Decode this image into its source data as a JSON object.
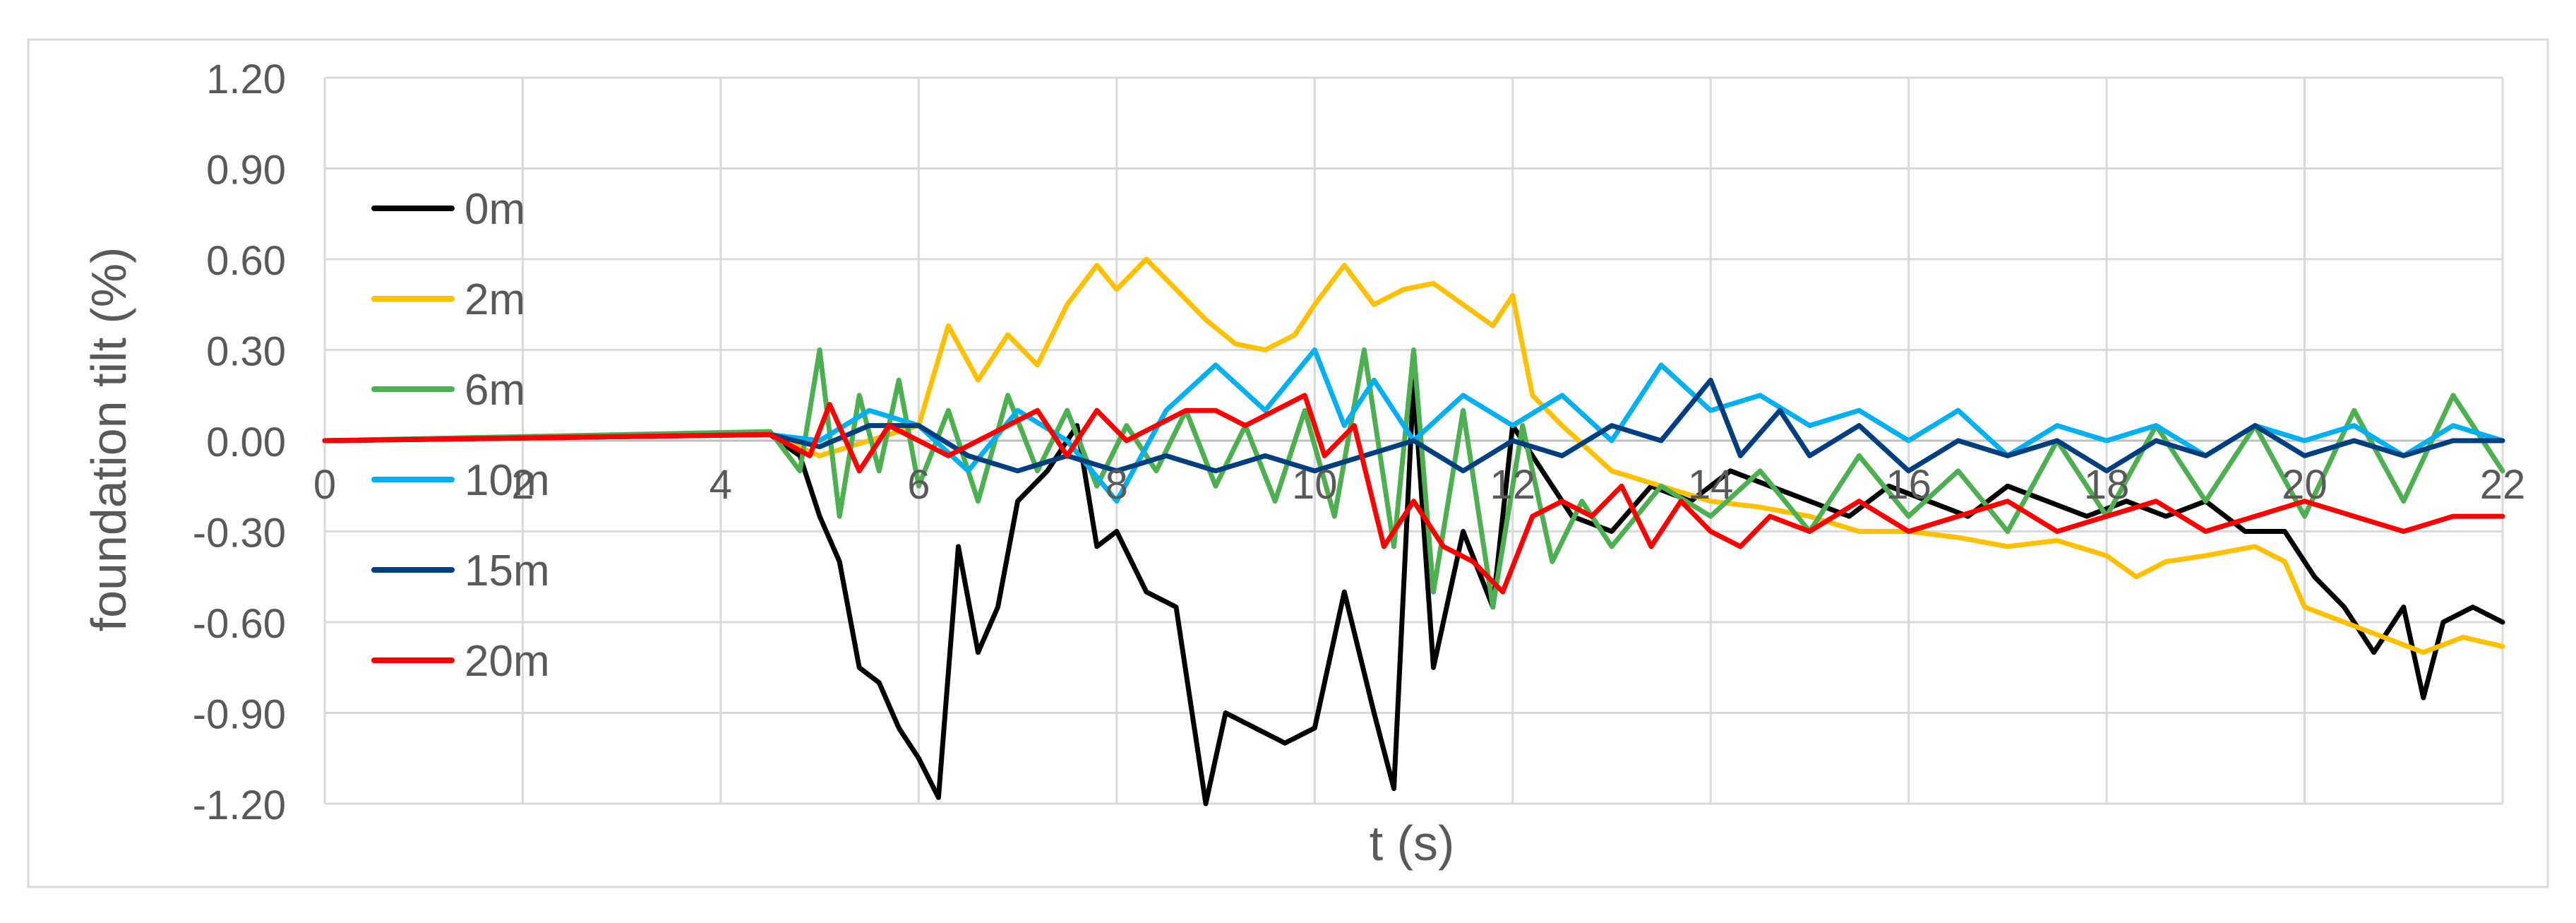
{
  "chart_data": {
    "type": "line",
    "title": "",
    "xlabel": "t (s)",
    "ylabel": "foundation tilt (%)",
    "xlim": [
      0,
      22
    ],
    "ylim": [
      -1.2,
      1.2
    ],
    "x_ticks": [
      0,
      2,
      4,
      6,
      8,
      10,
      12,
      14,
      16,
      18,
      20,
      22
    ],
    "x_tick_labels": [
      "0",
      "2",
      "4",
      "6",
      "8",
      "10",
      "12",
      "14",
      "16",
      "18",
      "20",
      "22"
    ],
    "y_ticks": [
      -1.2,
      -0.9,
      -0.6,
      -0.3,
      0,
      0.3,
      0.6,
      0.9,
      1.2
    ],
    "y_tick_labels": [
      "-1.20",
      "-0.90",
      "-0.60",
      "-0.30",
      "0.00",
      "0.30",
      "0.60",
      "0.90",
      "1.20"
    ],
    "grid": true,
    "legend_position": "left, inside plot",
    "series": [
      {
        "name": "0m",
        "color": "#000000",
        "points": [
          [
            0,
            0
          ],
          [
            4.5,
            0.02
          ],
          [
            4.8,
            -0.05
          ],
          [
            5.0,
            -0.25
          ],
          [
            5.2,
            -0.4
          ],
          [
            5.4,
            -0.75
          ],
          [
            5.6,
            -0.8
          ],
          [
            5.8,
            -0.95
          ],
          [
            6.0,
            -1.05
          ],
          [
            6.2,
            -1.18
          ],
          [
            6.4,
            -0.35
          ],
          [
            6.6,
            -0.7
          ],
          [
            6.8,
            -0.55
          ],
          [
            7.0,
            -0.2
          ],
          [
            7.3,
            -0.1
          ],
          [
            7.6,
            0.05
          ],
          [
            7.8,
            -0.35
          ],
          [
            8.0,
            -0.3
          ],
          [
            8.3,
            -0.5
          ],
          [
            8.6,
            -0.55
          ],
          [
            8.9,
            -1.2
          ],
          [
            9.1,
            -0.9
          ],
          [
            9.4,
            -0.95
          ],
          [
            9.7,
            -1.0
          ],
          [
            10.0,
            -0.95
          ],
          [
            10.3,
            -0.5
          ],
          [
            10.6,
            -0.9
          ],
          [
            10.8,
            -1.15
          ],
          [
            11.0,
            0.2
          ],
          [
            11.2,
            -0.75
          ],
          [
            11.5,
            -0.3
          ],
          [
            11.8,
            -0.55
          ],
          [
            12.0,
            0.05
          ],
          [
            12.3,
            -0.1
          ],
          [
            12.6,
            -0.25
          ],
          [
            13.0,
            -0.3
          ],
          [
            13.4,
            -0.15
          ],
          [
            13.8,
            -0.2
          ],
          [
            14.2,
            -0.1
          ],
          [
            14.6,
            -0.15
          ],
          [
            15.0,
            -0.2
          ],
          [
            15.4,
            -0.25
          ],
          [
            15.8,
            -0.15
          ],
          [
            16.2,
            -0.2
          ],
          [
            16.6,
            -0.25
          ],
          [
            17.0,
            -0.15
          ],
          [
            17.4,
            -0.2
          ],
          [
            17.8,
            -0.25
          ],
          [
            18.2,
            -0.2
          ],
          [
            18.6,
            -0.25
          ],
          [
            19.0,
            -0.2
          ],
          [
            19.4,
            -0.3
          ],
          [
            19.8,
            -0.3
          ],
          [
            20.1,
            -0.45
          ],
          [
            20.4,
            -0.55
          ],
          [
            20.7,
            -0.7
          ],
          [
            21.0,
            -0.55
          ],
          [
            21.2,
            -0.85
          ],
          [
            21.4,
            -0.6
          ],
          [
            21.7,
            -0.55
          ],
          [
            22.0,
            -0.6
          ]
        ]
      },
      {
        "name": "2m",
        "color": "#FFC000",
        "points": [
          [
            0,
            0
          ],
          [
            4.5,
            0.02
          ],
          [
            5.0,
            -0.05
          ],
          [
            5.5,
            0.0
          ],
          [
            6.0,
            0.05
          ],
          [
            6.3,
            0.38
          ],
          [
            6.6,
            0.2
          ],
          [
            6.9,
            0.35
          ],
          [
            7.2,
            0.25
          ],
          [
            7.5,
            0.45
          ],
          [
            7.8,
            0.58
          ],
          [
            8.0,
            0.5
          ],
          [
            8.3,
            0.6
          ],
          [
            8.6,
            0.5
          ],
          [
            8.9,
            0.4
          ],
          [
            9.2,
            0.32
          ],
          [
            9.5,
            0.3
          ],
          [
            9.8,
            0.35
          ],
          [
            10.0,
            0.45
          ],
          [
            10.3,
            0.58
          ],
          [
            10.6,
            0.45
          ],
          [
            10.9,
            0.5
          ],
          [
            11.2,
            0.52
          ],
          [
            11.5,
            0.45
          ],
          [
            11.8,
            0.38
          ],
          [
            12.0,
            0.48
          ],
          [
            12.2,
            0.15
          ],
          [
            12.5,
            0.05
          ],
          [
            13.0,
            -0.1
          ],
          [
            13.5,
            -0.15
          ],
          [
            14.0,
            -0.2
          ],
          [
            14.5,
            -0.22
          ],
          [
            15.0,
            -0.25
          ],
          [
            15.5,
            -0.3
          ],
          [
            16.0,
            -0.3
          ],
          [
            16.5,
            -0.32
          ],
          [
            17.0,
            -0.35
          ],
          [
            17.5,
            -0.33
          ],
          [
            18.0,
            -0.38
          ],
          [
            18.3,
            -0.45
          ],
          [
            18.6,
            -0.4
          ],
          [
            19.0,
            -0.38
          ],
          [
            19.5,
            -0.35
          ],
          [
            19.8,
            -0.4
          ],
          [
            20.0,
            -0.55
          ],
          [
            20.4,
            -0.6
          ],
          [
            20.8,
            -0.65
          ],
          [
            21.2,
            -0.7
          ],
          [
            21.6,
            -0.65
          ],
          [
            22.0,
            -0.68
          ]
        ]
      },
      {
        "name": "6m",
        "color": "#4CAF50",
        "points": [
          [
            0,
            0
          ],
          [
            4.5,
            0.03
          ],
          [
            4.8,
            -0.1
          ],
          [
            5.0,
            0.3
          ],
          [
            5.2,
            -0.25
          ],
          [
            5.4,
            0.15
          ],
          [
            5.6,
            -0.1
          ],
          [
            5.8,
            0.2
          ],
          [
            6.0,
            -0.15
          ],
          [
            6.3,
            0.1
          ],
          [
            6.6,
            -0.2
          ],
          [
            6.9,
            0.15
          ],
          [
            7.2,
            -0.1
          ],
          [
            7.5,
            0.1
          ],
          [
            7.8,
            -0.15
          ],
          [
            8.1,
            0.05
          ],
          [
            8.4,
            -0.1
          ],
          [
            8.7,
            0.1
          ],
          [
            9.0,
            -0.15
          ],
          [
            9.3,
            0.05
          ],
          [
            9.6,
            -0.2
          ],
          [
            9.9,
            0.1
          ],
          [
            10.2,
            -0.25
          ],
          [
            10.5,
            0.3
          ],
          [
            10.8,
            -0.35
          ],
          [
            11.0,
            0.3
          ],
          [
            11.2,
            -0.5
          ],
          [
            11.5,
            0.1
          ],
          [
            11.8,
            -0.55
          ],
          [
            12.1,
            0.05
          ],
          [
            12.4,
            -0.4
          ],
          [
            12.7,
            -0.2
          ],
          [
            13.0,
            -0.35
          ],
          [
            13.5,
            -0.15
          ],
          [
            14.0,
            -0.25
          ],
          [
            14.5,
            -0.1
          ],
          [
            15.0,
            -0.3
          ],
          [
            15.5,
            -0.05
          ],
          [
            16.0,
            -0.25
          ],
          [
            16.5,
            -0.1
          ],
          [
            17.0,
            -0.3
          ],
          [
            17.5,
            0.0
          ],
          [
            18.0,
            -0.25
          ],
          [
            18.5,
            0.05
          ],
          [
            19.0,
            -0.2
          ],
          [
            19.5,
            0.05
          ],
          [
            20.0,
            -0.25
          ],
          [
            20.5,
            0.1
          ],
          [
            21.0,
            -0.2
          ],
          [
            21.5,
            0.15
          ],
          [
            22.0,
            -0.1
          ]
        ]
      },
      {
        "name": "10m",
        "color": "#00B0F0",
        "points": [
          [
            0,
            0
          ],
          [
            4.5,
            0.02
          ],
          [
            5.0,
            0.0
          ],
          [
            5.5,
            0.1
          ],
          [
            6.0,
            0.05
          ],
          [
            6.5,
            -0.1
          ],
          [
            7.0,
            0.1
          ],
          [
            7.5,
            0.0
          ],
          [
            8.0,
            -0.2
          ],
          [
            8.5,
            0.1
          ],
          [
            9.0,
            0.25
          ],
          [
            9.5,
            0.1
          ],
          [
            10.0,
            0.3
          ],
          [
            10.3,
            0.05
          ],
          [
            10.6,
            0.2
          ],
          [
            11.0,
            0.0
          ],
          [
            11.5,
            0.15
          ],
          [
            12.0,
            0.05
          ],
          [
            12.5,
            0.15
          ],
          [
            13.0,
            0.0
          ],
          [
            13.5,
            0.25
          ],
          [
            14.0,
            0.1
          ],
          [
            14.5,
            0.15
          ],
          [
            15.0,
            0.05
          ],
          [
            15.5,
            0.1
          ],
          [
            16.0,
            0.0
          ],
          [
            16.5,
            0.1
          ],
          [
            17.0,
            -0.05
          ],
          [
            17.5,
            0.05
          ],
          [
            18.0,
            0.0
          ],
          [
            18.5,
            0.05
          ],
          [
            19.0,
            -0.05
          ],
          [
            19.5,
            0.05
          ],
          [
            20.0,
            0.0
          ],
          [
            20.5,
            0.05
          ],
          [
            21.0,
            -0.05
          ],
          [
            21.5,
            0.05
          ],
          [
            22.0,
            0.0
          ]
        ]
      },
      {
        "name": "15m",
        "color": "#003F7F",
        "points": [
          [
            0,
            0
          ],
          [
            4.5,
            0.02
          ],
          [
            5.0,
            -0.02
          ],
          [
            5.5,
            0.05
          ],
          [
            6.0,
            0.05
          ],
          [
            6.5,
            -0.05
          ],
          [
            7.0,
            -0.1
          ],
          [
            7.5,
            -0.05
          ],
          [
            8.0,
            -0.1
          ],
          [
            8.5,
            -0.05
          ],
          [
            9.0,
            -0.1
          ],
          [
            9.5,
            -0.05
          ],
          [
            10.0,
            -0.1
          ],
          [
            10.5,
            -0.05
          ],
          [
            11.0,
            0.0
          ],
          [
            11.5,
            -0.1
          ],
          [
            12.0,
            0.0
          ],
          [
            12.5,
            -0.05
          ],
          [
            13.0,
            0.05
          ],
          [
            13.5,
            0.0
          ],
          [
            14.0,
            0.2
          ],
          [
            14.3,
            -0.05
          ],
          [
            14.7,
            0.1
          ],
          [
            15.0,
            -0.05
          ],
          [
            15.5,
            0.05
          ],
          [
            16.0,
            -0.1
          ],
          [
            16.5,
            0.0
          ],
          [
            17.0,
            -0.05
          ],
          [
            17.5,
            0.0
          ],
          [
            18.0,
            -0.1
          ],
          [
            18.5,
            0.0
          ],
          [
            19.0,
            -0.05
          ],
          [
            19.5,
            0.05
          ],
          [
            20.0,
            -0.05
          ],
          [
            20.5,
            0.0
          ],
          [
            21.0,
            -0.05
          ],
          [
            21.5,
            0.0
          ],
          [
            22.0,
            0.0
          ]
        ]
      },
      {
        "name": "20m",
        "color": "#FF0000",
        "points": [
          [
            0,
            0
          ],
          [
            4.5,
            0.02
          ],
          [
            4.9,
            -0.05
          ],
          [
            5.1,
            0.12
          ],
          [
            5.4,
            -0.1
          ],
          [
            5.7,
            0.05
          ],
          [
            6.0,
            0.0
          ],
          [
            6.3,
            -0.05
          ],
          [
            6.6,
            0.0
          ],
          [
            6.9,
            0.05
          ],
          [
            7.2,
            0.1
          ],
          [
            7.5,
            -0.05
          ],
          [
            7.8,
            0.1
          ],
          [
            8.1,
            0.0
          ],
          [
            8.4,
            0.05
          ],
          [
            8.7,
            0.1
          ],
          [
            9.0,
            0.1
          ],
          [
            9.3,
            0.05
          ],
          [
            9.6,
            0.1
          ],
          [
            9.9,
            0.15
          ],
          [
            10.1,
            -0.05
          ],
          [
            10.4,
            0.05
          ],
          [
            10.7,
            -0.35
          ],
          [
            11.0,
            -0.2
          ],
          [
            11.3,
            -0.35
          ],
          [
            11.6,
            -0.4
          ],
          [
            11.9,
            -0.5
          ],
          [
            12.2,
            -0.25
          ],
          [
            12.5,
            -0.2
          ],
          [
            12.8,
            -0.25
          ],
          [
            13.1,
            -0.15
          ],
          [
            13.4,
            -0.35
          ],
          [
            13.7,
            -0.2
          ],
          [
            14.0,
            -0.3
          ],
          [
            14.3,
            -0.35
          ],
          [
            14.6,
            -0.25
          ],
          [
            15.0,
            -0.3
          ],
          [
            15.5,
            -0.2
          ],
          [
            16.0,
            -0.3
          ],
          [
            16.5,
            -0.25
          ],
          [
            17.0,
            -0.2
          ],
          [
            17.5,
            -0.3
          ],
          [
            18.0,
            -0.25
          ],
          [
            18.5,
            -0.2
          ],
          [
            19.0,
            -0.3
          ],
          [
            19.5,
            -0.25
          ],
          [
            20.0,
            -0.2
          ],
          [
            20.5,
            -0.25
          ],
          [
            21.0,
            -0.3
          ],
          [
            21.5,
            -0.25
          ],
          [
            22.0,
            -0.25
          ]
        ]
      }
    ]
  }
}
